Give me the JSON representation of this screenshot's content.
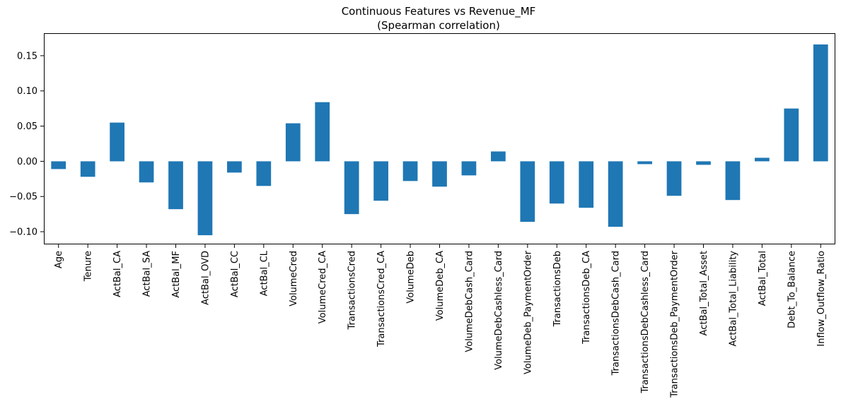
{
  "chart_data": {
    "type": "bar",
    "title": "Continuous Features vs Revenue_MF",
    "subtitle": "(Spearman correlation)",
    "xlabel": "",
    "ylabel": "",
    "ylim": [
      -0.118,
      0.182
    ],
    "yticks": [
      -0.1,
      -0.05,
      0.0,
      0.05,
      0.1,
      0.15
    ],
    "ytick_labels": [
      "−0.10",
      "−0.05",
      "0.00",
      "0.05",
      "0.10",
      "0.15"
    ],
    "grid": false,
    "bar_color": "#1f77b4",
    "categories": [
      "Age",
      "Tenure",
      "ActBal_CA",
      "ActBal_SA",
      "ActBal_MF",
      "ActBal_OVD",
      "ActBal_CC",
      "ActBal_CL",
      "VolumeCred",
      "VolumeCred_CA",
      "TransactionsCred",
      "TransactionsCred_CA",
      "VolumeDeb",
      "VolumeDeb_CA",
      "VolumeDebCash_Card",
      "VolumeDebCashless_Card",
      "VolumeDeb_PaymentOrder",
      "TransactionsDeb",
      "TransactionsDeb_CA",
      "TransactionsDebCash_Card",
      "TransactionsDebCashless_Card",
      "TransactionsDeb_PaymentOrder",
      "ActBal_Total_Asset",
      "ActBal_Total_Liability",
      "ActBal_Total",
      "Debt_To_Balance",
      "Inflow_Outflow_Ratio"
    ],
    "values": [
      -0.011,
      -0.022,
      0.055,
      -0.03,
      -0.068,
      -0.105,
      -0.016,
      -0.035,
      0.054,
      0.084,
      -0.075,
      -0.056,
      -0.028,
      -0.036,
      -0.02,
      0.014,
      -0.086,
      -0.06,
      -0.066,
      -0.093,
      -0.004,
      -0.049,
      -0.005,
      -0.055,
      0.005,
      0.075,
      0.166
    ]
  }
}
